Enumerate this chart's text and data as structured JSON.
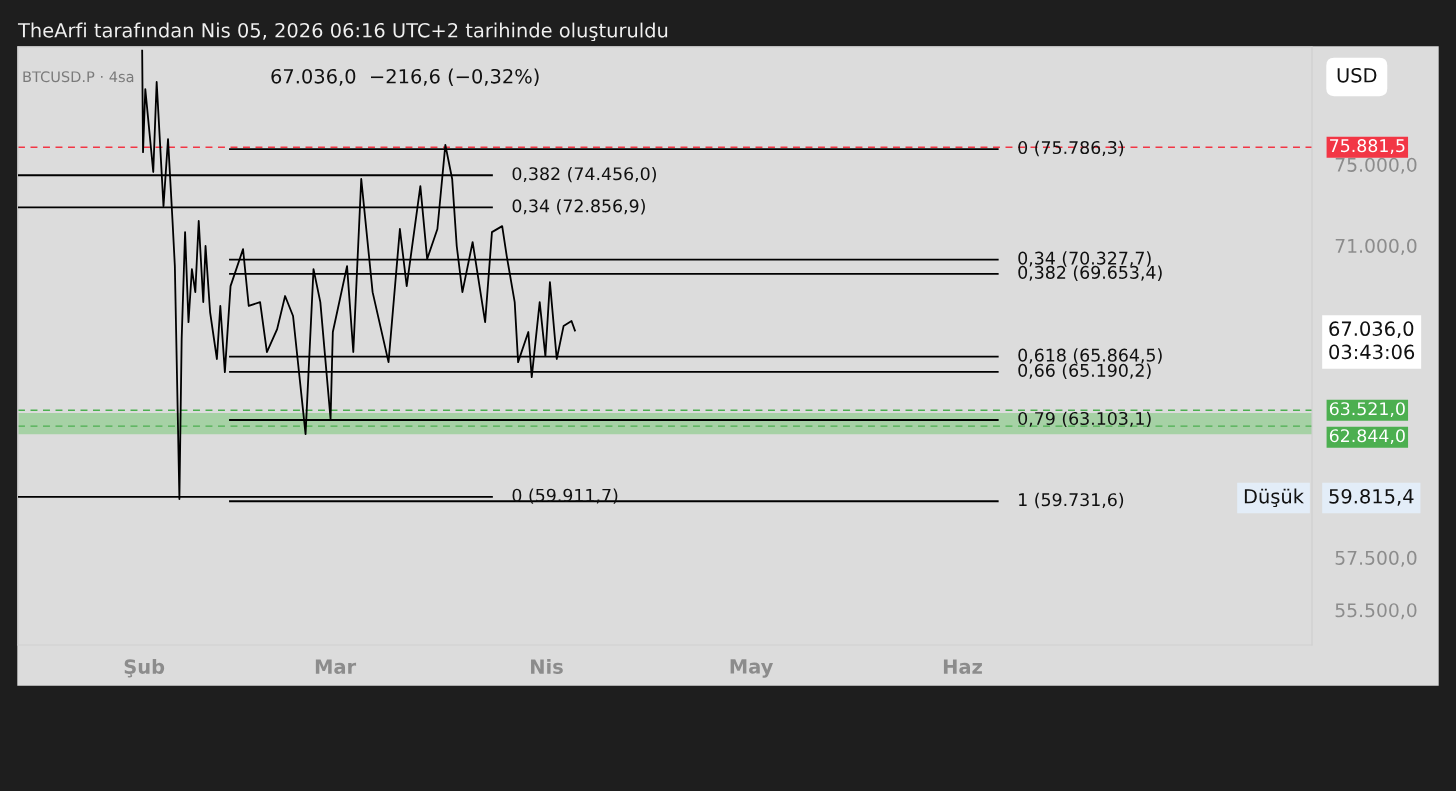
{
  "chart_data": {
    "type": "line",
    "title": "TheArfi tarafından Nis 05, 2026 06:16 UTC+2 tarihinde oluşturuldu",
    "annotations": [
      "BTCUSD.P · 4sa",
      "67.036,0  −216,6 (−0,32%)",
      "USD",
      "67.036,0\n03:43:06",
      "Düşük",
      "59.815,4"
    ],
    "log": "y",
    "grid": false,
    "legend": false,
    "line_style": "solid",
    "xlim": [
      "2026-01-13T12:00",
      "2026-07-22T06:00"
    ],
    "xticks": [
      {
        "value": "2026-02-01",
        "label": "Şub"
      },
      {
        "value": "2026-03-01",
        "label": "Mar"
      },
      {
        "value": "2026-04-01",
        "label": "Nis"
      },
      {
        "value": "2026-05-01",
        "label": "May"
      },
      {
        "value": "2026-06-01",
        "label": "Haz"
      }
    ],
    "ylim": [
      54200,
      81200
    ],
    "yticks": [
      {
        "value": 55500,
        "label": "55.500,0"
      },
      {
        "value": 57500,
        "label": "57.500,0"
      },
      {
        "value": 71000,
        "label": "71.000,0"
      },
      {
        "value": 75000,
        "label": "75.000,0"
      }
    ],
    "series": [
      {
        "color": "#000000",
        "x": [
          "2026-01-31T17:00",
          "2026-01-31T20:00",
          "2026-02-01T04:00",
          "2026-02-02T08:00",
          "2026-02-02T20:00",
          "2026-02-03T20:00",
          "2026-02-04T12:00",
          "2026-02-05T04:00",
          "2026-02-05T12:00",
          "2026-02-06T04:00",
          "2026-02-06T12:00",
          "2026-02-07T00:00",
          "2026-02-07T12:00",
          "2026-02-08T00:00",
          "2026-02-08T12:00",
          "2026-02-09T00:00",
          "2026-02-09T16:00",
          "2026-02-10T00:00",
          "2026-02-10T16:00",
          "2026-02-11T16:00",
          "2026-02-12T04:00",
          "2026-02-12T20:00",
          "2026-02-13T16:00",
          "2026-02-15T12:00",
          "2026-02-16T08:00",
          "2026-02-18T00:00",
          "2026-02-19T00:00",
          "2026-02-20T12:00",
          "2026-02-21T16:00",
          "2026-02-22T20:00",
          "2026-02-24T16:00",
          "2026-02-25T20:00",
          "2026-02-26T20:00",
          "2026-02-28T08:00",
          "2026-02-28T16:00",
          "2026-03-02T18:00",
          "2026-03-03T16:00",
          "2026-03-04T20:00",
          "2026-03-06T12:00",
          "2026-03-08T20:00",
          "2026-03-10T12:00",
          "2026-03-11T12:00",
          "2026-03-13T12:00",
          "2026-03-14T12:00",
          "2026-03-16T00:00",
          "2026-03-17T04:00",
          "2026-03-18T04:00",
          "2026-03-18T20:00",
          "2026-03-19T16:00",
          "2026-03-21T04:00",
          "2026-03-23T00:00",
          "2026-03-24T00:00",
          "2026-03-25T12:00",
          "2026-03-26T04:00",
          "2026-03-27T08:00",
          "2026-03-27T20:00",
          "2026-03-29T08:00",
          "2026-03-29T20:00",
          "2026-03-31T00:00",
          "2026-03-31T20:00",
          "2026-04-01T12:00",
          "2026-04-02T12:00",
          "2026-04-03T12:00",
          "2026-04-04T16:00",
          "2026-04-05T04:00"
        ],
        "values": [
          81000,
          75630,
          78920,
          74620,
          79300,
          72920,
          76300,
          72140,
          70020,
          59820,
          66650,
          71650,
          67420,
          69880,
          68800,
          72190,
          68340,
          70980,
          67880,
          65760,
          68160,
          65180,
          69080,
          70830,
          68160,
          68340,
          66070,
          67100,
          68620,
          67700,
          62500,
          69880,
          68340,
          63150,
          66970,
          70020,
          66070,
          74270,
          68800,
          65620,
          71800,
          69080,
          73910,
          70360,
          71800,
          76000,
          74270,
          70980,
          68800,
          71170,
          67420,
          71650,
          71940,
          70500,
          68340,
          65620,
          66970,
          64960,
          68340,
          65890,
          69270,
          65760,
          67240,
          67470,
          67036
        ]
      },
      {
        "name": "0,382 (74.456,0)",
        "color": "#000000",
        "x": [
          "2026-01-13T12:00",
          "2026-03-24T00:00"
        ],
        "values": [
          74456.0,
          74456.0
        ]
      },
      {
        "name": "0,34 (72.856,9)",
        "color": "#000000",
        "x": [
          "2026-01-13T12:00",
          "2026-03-24T00:00"
        ],
        "values": [
          72856.9,
          72856.9
        ]
      },
      {
        "name": "0 (59.911,7)",
        "color": "#000000",
        "x": [
          "2026-01-13T12:00",
          "2026-03-24T00:00"
        ],
        "values": [
          59911.7,
          59911.7
        ]
      },
      {
        "name": "0 (75.786,3)",
        "color": "#000000",
        "x": [
          "2026-02-13T14:00",
          "2026-06-06T04:00"
        ],
        "values": [
          75786.3,
          75786.3
        ]
      },
      {
        "name": "0,34 (70.327,7)",
        "color": "#000000",
        "x": [
          "2026-02-13T14:00",
          "2026-06-06T04:00"
        ],
        "values": [
          70327.7,
          70327.7
        ]
      },
      {
        "name": "0,382 (69.653,4)",
        "color": "#000000",
        "x": [
          "2026-02-13T14:00",
          "2026-06-06T04:00"
        ],
        "values": [
          69653.4,
          69653.4
        ]
      },
      {
        "name": "0,618 (65.864,5)",
        "color": "#000000",
        "x": [
          "2026-02-13T14:00",
          "2026-06-06T04:00"
        ],
        "values": [
          65864.5,
          65864.5
        ]
      },
      {
        "name": "0,66 (65.190,2)",
        "color": "#000000",
        "x": [
          "2026-02-13T14:00",
          "2026-06-06T04:00"
        ],
        "values": [
          65190.2,
          65190.2
        ]
      },
      {
        "name": "0,79 (63.103,1)",
        "color": "#000000",
        "x": [
          "2026-02-13T14:00",
          "2026-06-06T04:00"
        ],
        "values": [
          63103.1,
          63103.1
        ]
      },
      {
        "name": "1 (59.731,6)",
        "color": "#000000",
        "x": [
          "2026-02-13T14:00",
          "2026-06-06T04:00"
        ],
        "values": [
          59731.6,
          59731.6
        ]
      }
    ],
    "ref_lines": [
      {
        "axis": "y",
        "value": 75881.5,
        "label": "75.881,5",
        "color": "#f23645",
        "line_style": "dashed"
      },
      {
        "axis": "y",
        "value": 63521.0,
        "label": "63.521,0",
        "color": "#4caf50",
        "line_style": "dashed"
      },
      {
        "axis": "y",
        "value": 62844.0,
        "label": "62.844,0",
        "color": "#4caf50",
        "line_style": "dashed"
      }
    ],
    "bands": [
      {
        "axis": "y",
        "from": 62500,
        "to": 63400,
        "color": "#a6d1a5"
      }
    ]
  }
}
